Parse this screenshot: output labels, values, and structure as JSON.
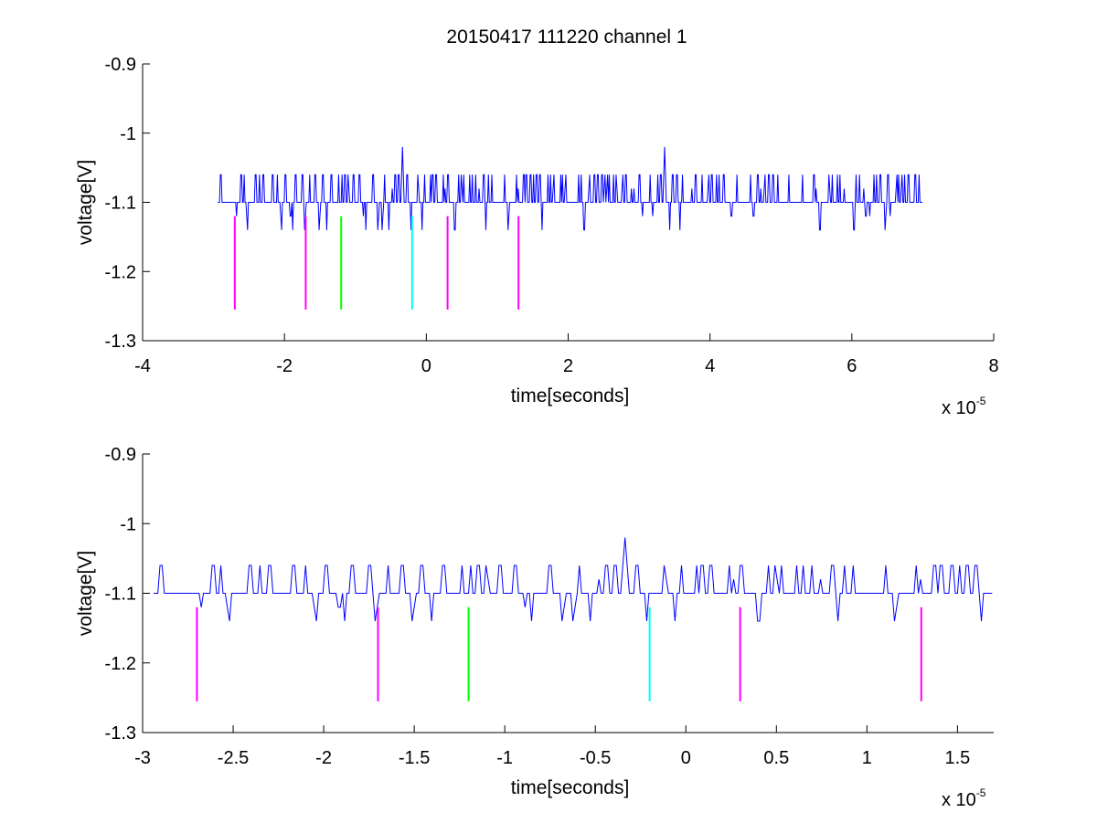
{
  "figure": {
    "title": "20150417 111220 channel 1"
  },
  "chart_data": [
    {
      "type": "line",
      "title": "20150417 111220 channel 1",
      "xlabel": "time[seconds]",
      "ylabel": "voltage[V]",
      "x_exponent_base": "x 10",
      "x_exponent_power": "-5",
      "xlim": [
        -4e-05,
        8e-05
      ],
      "ylim": [
        -1.3,
        -0.9
      ],
      "y_reversed": true,
      "grid": false,
      "xticks": [
        -4e-05,
        -2e-05,
        0,
        2e-05,
        4e-05,
        6e-05,
        8e-05
      ],
      "xtick_labels": [
        "-4",
        "-2",
        "0",
        "2",
        "4",
        "6",
        "8"
      ],
      "yticks": [
        -1.3,
        -1.2,
        -1.1,
        -1.0,
        -0.9
      ],
      "ytick_labels": [
        "-1.3",
        "-1.2",
        "-1.1",
        "-1",
        "-0.9"
      ],
      "series": [
        {
          "color": "#0000ff",
          "kind": "signal",
          "x_range": [
            -2.94e-05,
            7e-05
          ],
          "baseline": -1.1,
          "levels": [
            -1.14,
            -1.12,
            -1.1,
            -1.08,
            -1.06
          ],
          "spikes": [
            {
              "x": -3.4e-06,
              "y": -1.02
            },
            {
              "x": 3.36e-05,
              "y": -1.02
            }
          ]
        }
      ],
      "markers": [
        {
          "x": -2.7e-05,
          "color": "#ff00ff",
          "y_range": [
            -1.12,
            -1.255
          ]
        },
        {
          "x": -1.7e-05,
          "color": "#ff00ff",
          "y_range": [
            -1.12,
            -1.255
          ]
        },
        {
          "x": -1.2e-05,
          "color": "#00ff00",
          "y_range": [
            -1.12,
            -1.255
          ]
        },
        {
          "x": -2e-06,
          "color": "#00ffff",
          "y_range": [
            -1.12,
            -1.255
          ]
        },
        {
          "x": 3e-06,
          "color": "#ff00ff",
          "y_range": [
            -1.12,
            -1.255
          ]
        },
        {
          "x": 1.3e-05,
          "color": "#ff00ff",
          "y_range": [
            -1.12,
            -1.255
          ]
        }
      ]
    },
    {
      "type": "line",
      "xlabel": "time[seconds]",
      "ylabel": "voltage[V]",
      "x_exponent_base": "x 10",
      "x_exponent_power": "-5",
      "xlim": [
        -3e-05,
        1.7e-05
      ],
      "ylim": [
        -1.3,
        -0.9
      ],
      "y_reversed": true,
      "grid": false,
      "xticks": [
        -3e-05,
        -2.5e-05,
        -2e-05,
        -1.5e-05,
        -1e-05,
        -5e-06,
        0,
        5e-06,
        1e-05,
        1.5e-05
      ],
      "xtick_labels": [
        "-3",
        "-2.5",
        "-2",
        "-1.5",
        "-1",
        "-0.5",
        "0",
        "0.5",
        "1",
        "1.5"
      ],
      "yticks": [
        -1.3,
        -1.2,
        -1.1,
        -1.0,
        -0.9
      ],
      "ytick_labels": [
        "-1.3",
        "-1.2",
        "-1.1",
        "-1",
        "-0.9"
      ],
      "series": [
        {
          "color": "#0000ff",
          "kind": "signal",
          "x_range": [
            -2.94e-05,
            1.7e-05
          ],
          "baseline": -1.1,
          "levels": [
            -1.14,
            -1.12,
            -1.1,
            -1.08,
            -1.06
          ],
          "spikes": [
            {
              "x": -3.4e-06,
              "y": -1.02
            }
          ]
        }
      ],
      "markers": [
        {
          "x": -2.7e-05,
          "color": "#ff00ff",
          "y_range": [
            -1.12,
            -1.255
          ]
        },
        {
          "x": -1.7e-05,
          "color": "#ff00ff",
          "y_range": [
            -1.12,
            -1.255
          ]
        },
        {
          "x": -1.2e-05,
          "color": "#00ff00",
          "y_range": [
            -1.12,
            -1.255
          ]
        },
        {
          "x": -2e-06,
          "color": "#00ffff",
          "y_range": [
            -1.12,
            -1.255
          ]
        },
        {
          "x": 3e-06,
          "color": "#ff00ff",
          "y_range": [
            -1.12,
            -1.255
          ]
        },
        {
          "x": 1.3e-05,
          "color": "#ff00ff",
          "y_range": [
            -1.12,
            -1.255
          ]
        }
      ]
    }
  ]
}
